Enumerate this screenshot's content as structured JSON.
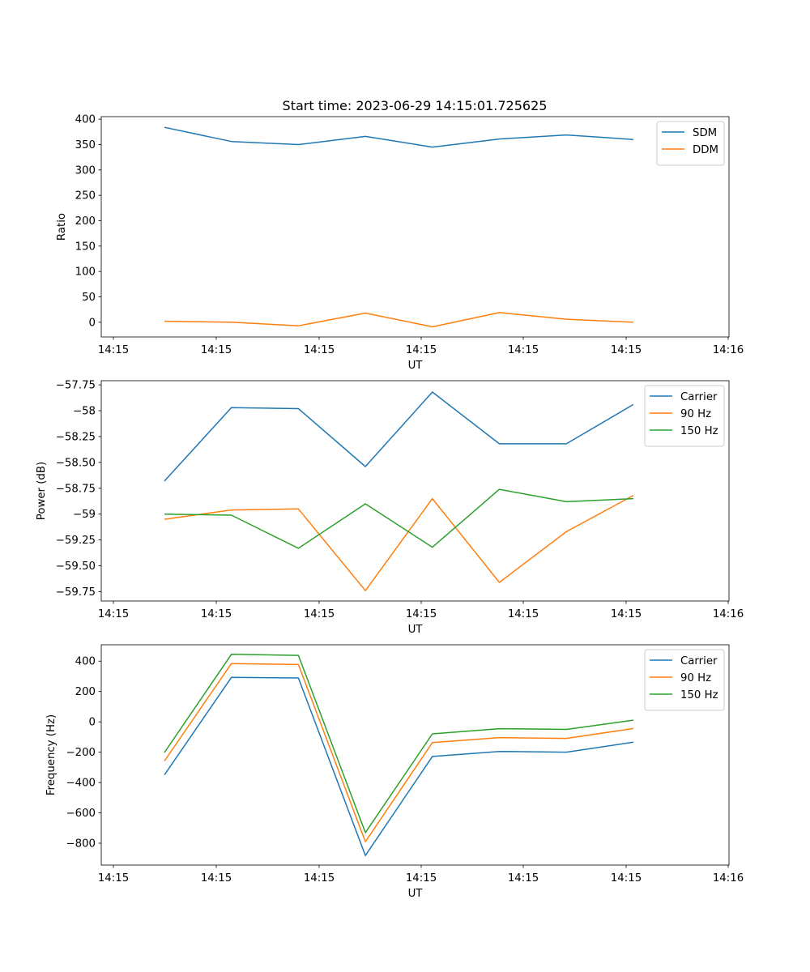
{
  "figure": {
    "title": "Start time: 2023-06-29 14:15:01.725625"
  },
  "chart_data": [
    {
      "type": "line",
      "xlabel": "UT",
      "ylabel": "Ratio",
      "x_ticks": [
        "14:15",
        "14:15",
        "14:15",
        "14:15",
        "14:15",
        "14:15",
        "14:16"
      ],
      "ylim": [
        -29,
        405
      ],
      "y_ticks": [
        0,
        50,
        100,
        150,
        200,
        250,
        300,
        350,
        400
      ],
      "legend_position": "top-right",
      "grid": false,
      "series": [
        {
          "name": "SDM",
          "color": "#1f77b4",
          "values": [
            384,
            356,
            350,
            366,
            345,
            361,
            369,
            360
          ]
        },
        {
          "name": "DDM",
          "color": "#ff7f0e",
          "values": [
            2,
            0,
            -7,
            18,
            -9,
            19,
            6,
            0
          ]
        }
      ]
    },
    {
      "type": "line",
      "xlabel": "UT",
      "ylabel": "Power (dB)",
      "x_ticks": [
        "14:15",
        "14:15",
        "14:15",
        "14:15",
        "14:15",
        "14:15",
        "14:16"
      ],
      "ylim": [
        -59.84,
        -57.71
      ],
      "y_ticks": [
        -59.75,
        -59.5,
        -59.25,
        -59.0,
        -58.75,
        -58.5,
        -58.25,
        -58.0,
        -57.75
      ],
      "legend_position": "top-right",
      "grid": false,
      "series": [
        {
          "name": "Carrier",
          "color": "#1f77b4",
          "values": [
            -58.68,
            -57.97,
            -57.98,
            -58.54,
            -57.82,
            -58.32,
            -58.32,
            -57.94
          ]
        },
        {
          "name": "90 Hz",
          "color": "#ff7f0e",
          "values": [
            -59.05,
            -58.96,
            -58.95,
            -59.74,
            -58.85,
            -59.66,
            -59.17,
            -58.82
          ]
        },
        {
          "name": "150 Hz",
          "color": "#2ca02c",
          "values": [
            -59.0,
            -59.01,
            -59.33,
            -58.9,
            -59.32,
            -58.76,
            -58.88,
            -58.85
          ]
        }
      ]
    },
    {
      "type": "line",
      "xlabel": "UT",
      "ylabel": "Frequency (Hz)",
      "x_ticks": [
        "14:15",
        "14:15",
        "14:15",
        "14:15",
        "14:15",
        "14:15",
        "14:16"
      ],
      "ylim": [
        -944,
        508
      ],
      "y_ticks": [
        -800,
        -600,
        -400,
        -200,
        0,
        200,
        400
      ],
      "legend_position": "top-right",
      "grid": false,
      "series": [
        {
          "name": "Carrier",
          "color": "#1f77b4",
          "values": [
            -350,
            293,
            289,
            -881,
            -228,
            -195,
            -200,
            -134
          ]
        },
        {
          "name": "90 Hz",
          "color": "#ff7f0e",
          "values": [
            -258,
            384,
            378,
            -790,
            -137,
            -104,
            -109,
            -44
          ]
        },
        {
          "name": "150 Hz",
          "color": "#2ca02c",
          "values": [
            -202,
            445,
            438,
            -730,
            -79,
            -45,
            -50,
            11
          ]
        }
      ]
    }
  ]
}
